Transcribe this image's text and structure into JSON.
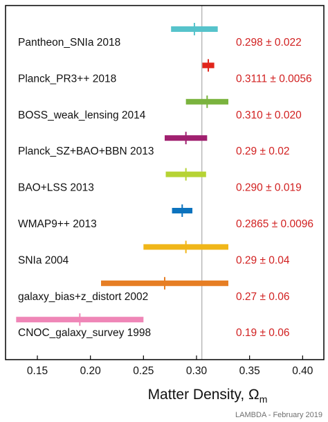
{
  "chart_data": {
    "type": "scatter",
    "xlabel": "Matter Density, Ω",
    "xlabel_subscript": "m",
    "xlim": [
      0.12,
      0.42
    ],
    "xticks": [
      0.15,
      0.2,
      0.25,
      0.3,
      0.35,
      0.4
    ],
    "xtick_labels": [
      "0.15",
      "0.20",
      "0.25",
      "0.30",
      "0.35",
      "0.40"
    ],
    "reference_line": 0.305,
    "reference_line_color": "#b9b9b9",
    "value_text_color": "#d11f1f",
    "rows": [
      {
        "label": "Pantheon_SNIa 2018",
        "center": 0.298,
        "low": 0.276,
        "high": 0.32,
        "text": "0.298 ± 0.022",
        "color": "#56c3cb"
      },
      {
        "label": "Planck_PR3++ 2018",
        "center": 0.3111,
        "low": 0.3055,
        "high": 0.3167,
        "text": "0.3111 ± 0.0056",
        "color": "#e1251b"
      },
      {
        "label": "BOSS_weak_lensing 2014",
        "center": 0.31,
        "low": 0.29,
        "high": 0.33,
        "text": "0.310 ± 0.020",
        "color": "#7ab33e"
      },
      {
        "label": "Planck_SZ+BAO+BBN 2013",
        "center": 0.29,
        "low": 0.27,
        "high": 0.31,
        "text": "0.29 ± 0.02",
        "color": "#a0206f"
      },
      {
        "label": "BAO+LSS 2013",
        "center": 0.29,
        "low": 0.271,
        "high": 0.309,
        "text": "0.290 ± 0.019",
        "color": "#b6d334"
      },
      {
        "label": "WMAP9++ 2013",
        "center": 0.2865,
        "low": 0.2769,
        "high": 0.2961,
        "text": "0.2865 ± 0.0096",
        "color": "#0c73be"
      },
      {
        "label": "SNIa 2004",
        "center": 0.29,
        "low": 0.25,
        "high": 0.33,
        "text": "0.29 ± 0.04",
        "color": "#f0b619"
      },
      {
        "label": "galaxy_bias+z_distort 2002",
        "center": 0.27,
        "low": 0.21,
        "high": 0.33,
        "text": "0.27 ± 0.06",
        "color": "#e67e24"
      },
      {
        "label": "CNOC_galaxy_survey 1998",
        "center": 0.19,
        "low": 0.13,
        "high": 0.25,
        "text": "0.19 ± 0.06",
        "color": "#ef86b7"
      }
    ]
  },
  "footer": {
    "credit": "LAMBDA - February 2019"
  }
}
